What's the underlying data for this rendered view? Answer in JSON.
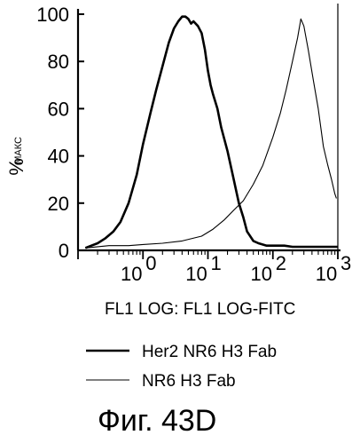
{
  "chart_data": {
    "type": "line",
    "xscale": "log",
    "xlim": [
      0.1,
      1000
    ],
    "ylim": [
      0,
      100
    ],
    "x_ticks": [
      {
        "base": "10",
        "exp": "0"
      },
      {
        "base": "10",
        "exp": "1"
      },
      {
        "base": "10",
        "exp": "2"
      },
      {
        "base": "10",
        "exp": "3"
      }
    ],
    "y_ticks": [
      "0",
      "20",
      "40",
      "60",
      "80",
      "100"
    ],
    "xlabel": "FL1 LOG: FL1 LOG-FITC",
    "ylabel": "%",
    "ylabel_sub": "МАКС",
    "series": [
      {
        "name": "Her2 NR6 H3 Fab",
        "color": "#000000",
        "style": "thick",
        "x": [
          0.13,
          0.16,
          0.2,
          0.26,
          0.35,
          0.45,
          0.6,
          0.8,
          1.0,
          1.3,
          1.6,
          2.0,
          2.5,
          3.0,
          3.5,
          4.0,
          4.5,
          5.0,
          5.5,
          6.0,
          7.0,
          8.0,
          9.0,
          10,
          11,
          12,
          14,
          16,
          20,
          25,
          30,
          35,
          40,
          50,
          60,
          80,
          100,
          150,
          200,
          300,
          500,
          700,
          1000
        ],
        "y": [
          1,
          2,
          3,
          5,
          8,
          12,
          20,
          32,
          45,
          58,
          68,
          78,
          88,
          94,
          97,
          99,
          99,
          98,
          96,
          97,
          95,
          92,
          85,
          76,
          70,
          66,
          60,
          52,
          42,
          30,
          20,
          14,
          8,
          4,
          3,
          2,
          2,
          2,
          1.5,
          1.5,
          1.5,
          1.5,
          1.5
        ]
      },
      {
        "name": "NR6 H3 Fab",
        "color": "#000000",
        "style": "thin",
        "x": [
          0.13,
          0.3,
          0.6,
          1.0,
          2.0,
          4.0,
          8.0,
          12,
          18,
          25,
          35,
          50,
          70,
          100,
          130,
          160,
          200,
          240,
          270,
          300,
          350,
          420,
          500,
          600,
          700,
          800,
          900,
          950
        ],
        "y": [
          1,
          2,
          2,
          2.5,
          3,
          4,
          6,
          9,
          13,
          17,
          21,
          28,
          36,
          48,
          58,
          68,
          80,
          90,
          98,
          95,
          85,
          72,
          60,
          44,
          36,
          30,
          24,
          22
        ]
      }
    ]
  },
  "figure_caption": "Фиг. 43D"
}
